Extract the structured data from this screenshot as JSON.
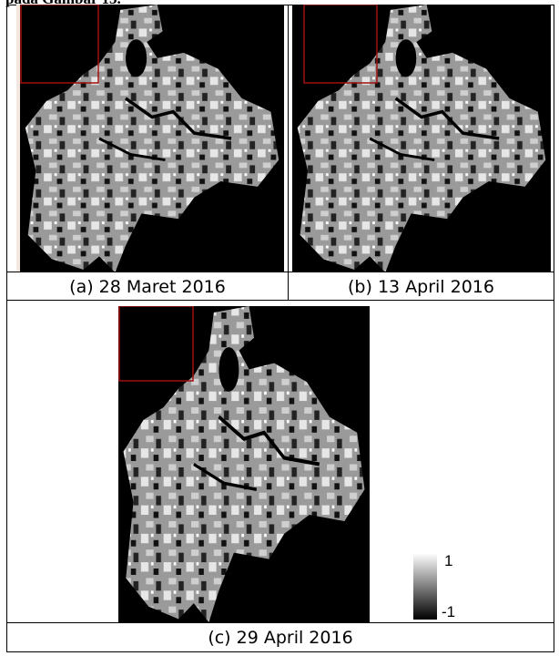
{
  "intro": "pada Gambar 13.",
  "figures": [
    {
      "caption": "(a) 28 Maret 2016"
    },
    {
      "caption": "(b) 13 April 2016"
    },
    {
      "caption": "(c) 29 April 2016"
    }
  ],
  "legend": {
    "max_label": "1",
    "min_label": "-1"
  }
}
